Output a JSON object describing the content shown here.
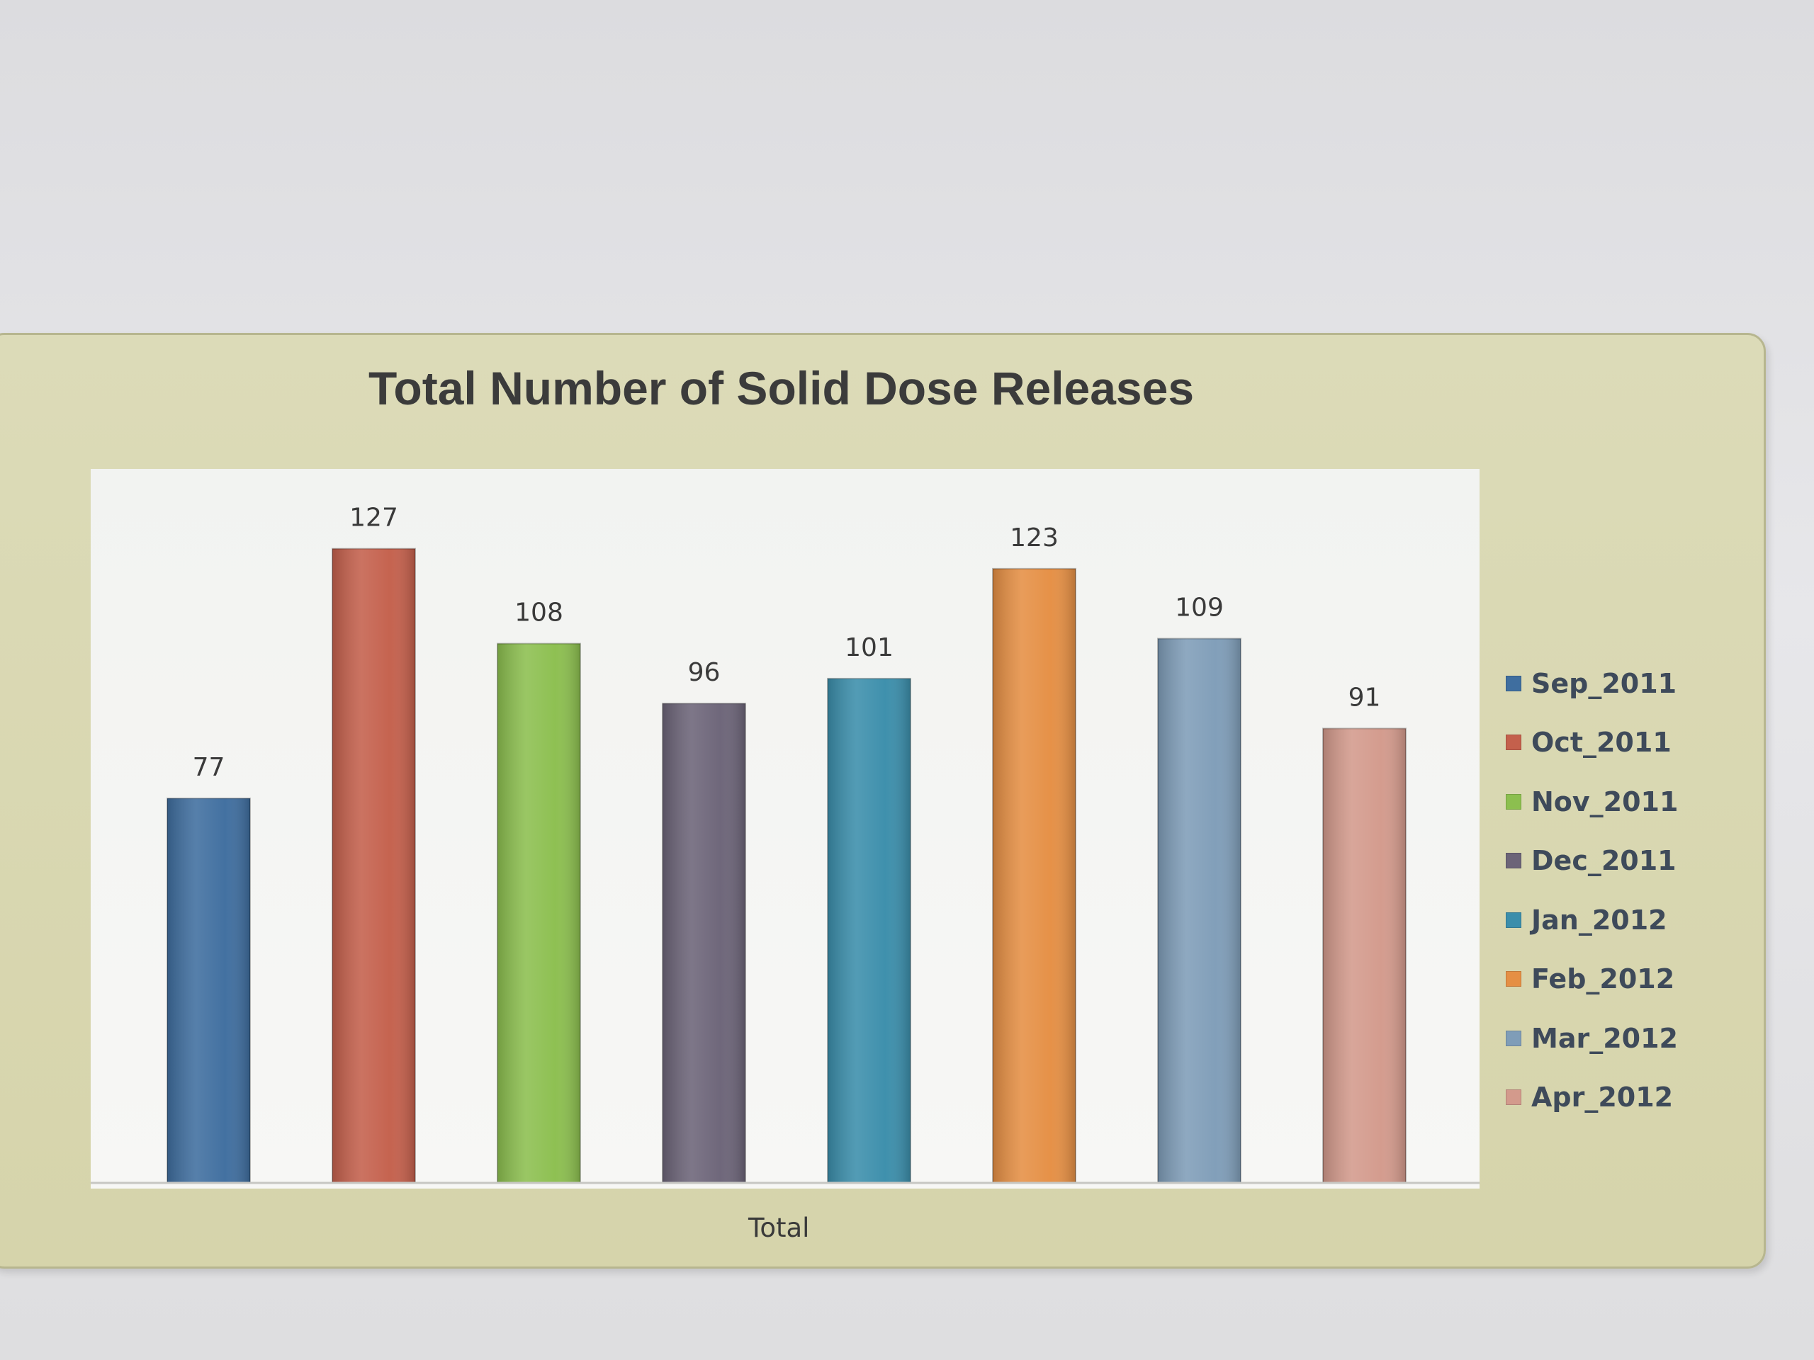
{
  "chart_data": {
    "type": "bar",
    "title": "Total Number of Solid Dose Releases",
    "xlabel": "Total",
    "ylabel": "",
    "ylim": [
      0,
      140
    ],
    "grid": false,
    "legend_position": "right",
    "categories": [
      "Total"
    ],
    "series": [
      {
        "name": "Sep_2011",
        "value": 77,
        "label": "77",
        "color": "#3f6e9f"
      },
      {
        "name": "Oct_2011",
        "value": 127,
        "label": "127",
        "color": "#c4604c"
      },
      {
        "name": "Nov_2011",
        "value": 108,
        "label": "108",
        "color": "#8cbf4f"
      },
      {
        "name": "Dec_2011",
        "value": 96,
        "label": "96",
        "color": "#6c6478"
      },
      {
        "name": "Jan_2012",
        "value": 101,
        "label": "101",
        "color": "#3b8eab"
      },
      {
        "name": "Feb_2012",
        "value": 123,
        "label": "123",
        "color": "#e58f44"
      },
      {
        "name": "Mar_2012",
        "value": 109,
        "label": "109",
        "color": "#7f9db8"
      },
      {
        "name": "Apr_2012",
        "value": 91,
        "label": "91",
        "color": "#d39a8c"
      }
    ]
  }
}
